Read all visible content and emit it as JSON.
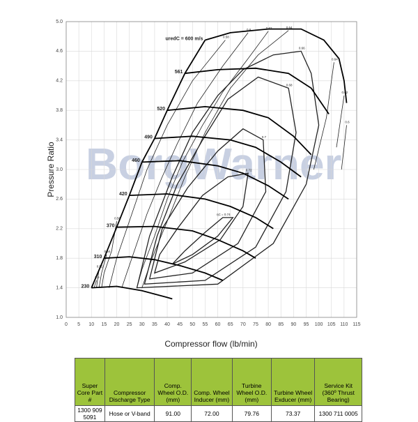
{
  "chart_data": {
    "type": "compressor-map",
    "xlabel": "Compressor flow (lb/min)",
    "ylabel": "Pressure Ratio",
    "watermark": "BorgWarner",
    "xlim": [
      0,
      115
    ],
    "xticks": [
      0,
      5,
      10,
      15,
      20,
      25,
      30,
      35,
      40,
      45,
      50,
      55,
      60,
      65,
      70,
      75,
      80,
      85,
      90,
      95,
      100,
      105,
      110,
      115
    ],
    "ylim": [
      1.0,
      5.0
    ],
    "yticks": [
      {
        "value": 1.0,
        "label": "1.0"
      },
      1.4,
      1.8,
      2.2,
      2.6,
      {
        "value": 3.0,
        "label": "3.0"
      },
      3.4,
      3.8,
      4.2,
      4.6,
      {
        "value": 5.0,
        "label": "5.0"
      }
    ],
    "grid": true,
    "speed_lines": [
      {
        "label": "230",
        "x": [
          10,
          20,
          30,
          40,
          42
        ],
        "y": [
          1.4,
          1.42,
          1.36,
          1.27,
          1.25
        ]
      },
      {
        "label": "310",
        "x": [
          15,
          25,
          35,
          45,
          55,
          62
        ],
        "y": [
          1.8,
          1.82,
          1.78,
          1.7,
          1.6,
          1.5
        ]
      },
      {
        "label": "370",
        "x": [
          20,
          35,
          50,
          60,
          70,
          75
        ],
        "y": [
          2.22,
          2.23,
          2.17,
          2.05,
          1.9,
          1.8
        ]
      },
      {
        "label": "420",
        "x": [
          25,
          40,
          55,
          65,
          75,
          82
        ],
        "y": [
          2.65,
          2.67,
          2.6,
          2.5,
          2.35,
          2.2
        ]
      },
      {
        "label": "460",
        "x": [
          30,
          45,
          60,
          70,
          80,
          88
        ],
        "y": [
          3.1,
          3.12,
          3.05,
          2.95,
          2.78,
          2.6
        ]
      },
      {
        "label": "490",
        "x": [
          35,
          50,
          65,
          75,
          85,
          93
        ],
        "y": [
          3.42,
          3.45,
          3.4,
          3.3,
          3.1,
          2.9
        ]
      },
      {
        "label": "520",
        "x": [
          40,
          55,
          70,
          80,
          90,
          97
        ],
        "y": [
          3.8,
          3.85,
          3.8,
          3.7,
          3.45,
          3.2
        ]
      },
      {
        "label": "561",
        "x": [
          47,
          60,
          75,
          88,
          97,
          104
        ],
        "y": [
          4.3,
          4.35,
          4.37,
          4.3,
          4.1,
          3.75
        ]
      },
      {
        "label": "uredC = 600 m/s",
        "x": [
          55,
          65,
          80,
          93,
          102,
          108,
          110,
          111
        ],
        "y": [
          4.75,
          4.85,
          4.9,
          4.9,
          4.75,
          4.5,
          4.2,
          3.9
        ]
      }
    ],
    "efficiency_lines": [
      {
        "label": "0.5",
        "closed": false,
        "x": [
          12,
          11
        ],
        "y": [
          1.5,
          1.4
        ]
      },
      {
        "label": "0.52",
        "closed": false,
        "x": [
          13,
          12
        ],
        "y": [
          1.65,
          1.4
        ]
      },
      {
        "label": "0.54",
        "closed": false,
        "x": [
          16,
          14,
          13
        ],
        "y": [
          1.85,
          1.6,
          1.4
        ]
      },
      {
        "label": "0.56",
        "closed": false,
        "x": [
          20,
          18,
          15,
          14
        ],
        "y": [
          2.3,
          1.9,
          1.6,
          1.4
        ]
      },
      {
        "label": "0.58",
        "closed": false,
        "x": [
          63,
          50,
          40,
          32,
          27,
          23,
          20,
          17
        ],
        "y": [
          4.75,
          4.2,
          3.6,
          3.0,
          2.5,
          2.1,
          1.8,
          1.4
        ]
      },
      {
        "label": "0.6",
        "closed": false,
        "x": [
          72,
          62,
          52,
          44,
          38,
          32,
          28,
          24,
          22
        ],
        "y": [
          4.85,
          4.4,
          3.9,
          3.35,
          2.9,
          2.4,
          2.0,
          1.6,
          1.4
        ]
      },
      {
        "label": "0.62",
        "closed": false,
        "x": [
          80,
          72,
          62,
          54,
          46,
          40,
          35,
          30,
          28
        ],
        "y": [
          4.87,
          4.5,
          4.05,
          3.6,
          3.1,
          2.6,
          2.1,
          1.65,
          1.4
        ]
      },
      {
        "label": "0.64",
        "closed": false,
        "x": [
          88,
          76,
          65,
          55,
          47,
          40,
          34,
          30
        ],
        "y": [
          4.88,
          4.55,
          4.1,
          3.5,
          2.9,
          2.3,
          1.8,
          1.4
        ]
      },
      {
        "label": "0.64",
        "closed": false,
        "x": [
          106,
          103,
          98
        ],
        "y": [
          4.45,
          3.7,
          3.0
        ]
      },
      {
        "label": "0.62",
        "closed": false,
        "x": [
          110,
          107
        ],
        "y": [
          4.0,
          3.3
        ]
      },
      {
        "label": "0.6",
        "closed": false,
        "x": [
          111,
          109
        ],
        "y": [
          3.6,
          3.0
        ]
      },
      {
        "label": "0.66",
        "closed": true,
        "x": [
          93,
          82,
          70,
          60,
          50,
          42,
          33,
          28,
          60,
          82,
          95,
          100,
          97
        ],
        "y": [
          4.6,
          4.55,
          4.35,
          4.0,
          3.5,
          2.9,
          2.1,
          1.4,
          1.45,
          2.0,
          2.8,
          3.6,
          4.3
        ]
      },
      {
        "label": "0.68",
        "closed": true,
        "x": [
          88,
          76,
          64,
          54,
          44,
          36,
          31,
          55,
          75,
          87,
          91
        ],
        "y": [
          4.1,
          4.25,
          3.95,
          3.4,
          2.8,
          2.1,
          1.45,
          1.5,
          1.95,
          2.7,
          3.5
        ]
      },
      {
        "label": "0.7",
        "closed": true,
        "x": [
          78,
          70,
          60,
          48,
          38,
          33,
          50,
          68,
          79
        ],
        "y": [
          3.4,
          3.55,
          3.25,
          2.75,
          2.2,
          1.52,
          1.6,
          2.0,
          2.7
        ]
      },
      {
        "label": "0.72",
        "closed": true,
        "x": [
          72,
          64,
          54,
          44,
          37,
          35,
          47,
          61,
          70
        ],
        "y": [
          2.95,
          2.9,
          2.65,
          2.2,
          1.85,
          1.6,
          1.75,
          2.05,
          2.5
        ]
      },
      {
        "label": "ηC = 0.74",
        "closed": true,
        "x": [
          62,
          55,
          47,
          42,
          50,
          60,
          66
        ],
        "y": [
          2.35,
          2.15,
          1.9,
          1.72,
          1.85,
          2.1,
          2.35
        ]
      }
    ]
  },
  "table": {
    "header": [
      "Super Core Part #",
      "Compressor Discharge Type",
      "Comp. Wheel O.D. (mm)",
      "Comp. Wheel Inducer (mm)",
      "Turbine Wheel O.D. (mm)",
      "Turbine Wheel Exducer (mm)",
      "Service Kit (360º Thrust Bearing)"
    ],
    "rows": [
      [
        "1300 909 5091",
        "Hose or V-band",
        "91.00",
        "72.00",
        "79.76",
        "73.37",
        "1300 711 0005"
      ]
    ]
  }
}
